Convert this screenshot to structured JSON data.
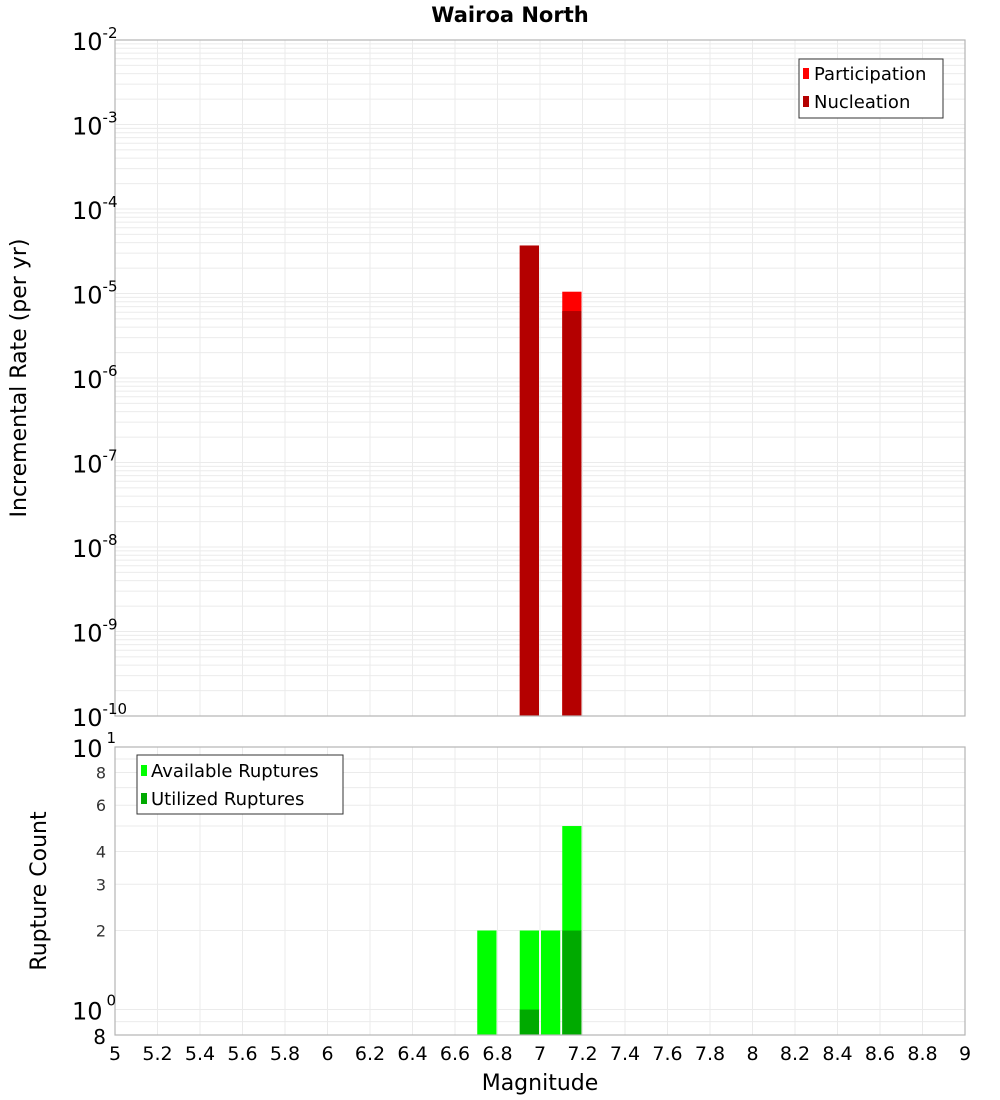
{
  "title": "Wairoa North",
  "colors": {
    "participation": "#ff0000",
    "nucleation": "#b40000",
    "available": "#00ff00",
    "utilized": "#00aa00",
    "grid": "#ebebeb",
    "frame": "#b4b4b4"
  },
  "top_plot": {
    "ylabel": "Incremental Rate (per yr)",
    "legend": [
      "Participation",
      "Nucleation"
    ],
    "yticks": [
      {
        "base": "10",
        "exp": "-2"
      },
      {
        "base": "10",
        "exp": "-3"
      },
      {
        "base": "10",
        "exp": "-4"
      },
      {
        "base": "10",
        "exp": "-5"
      },
      {
        "base": "10",
        "exp": "-6"
      },
      {
        "base": "10",
        "exp": "-7"
      },
      {
        "base": "10",
        "exp": "-8"
      },
      {
        "base": "10",
        "exp": "-9"
      },
      {
        "base": "10",
        "exp": "-10"
      }
    ]
  },
  "bottom_plot": {
    "ylabel": "Rupture Count",
    "legend": [
      "Available Ruptures",
      "Utilized Ruptures"
    ],
    "yticks_major": [
      {
        "base": "10",
        "exp": "1"
      },
      {
        "base": "10",
        "exp": "0"
      }
    ],
    "yticks_minor": [
      "8",
      "6",
      "4",
      "3",
      "2",
      "8"
    ]
  },
  "xaxis": {
    "label": "Magnitude",
    "ticks": [
      "5",
      "5.2",
      "5.4",
      "5.6",
      "5.8",
      "6",
      "6.2",
      "6.4",
      "6.6",
      "6.8",
      "7",
      "7.2",
      "7.4",
      "7.6",
      "7.8",
      "8",
      "8.2",
      "8.4",
      "8.6",
      "8.8",
      "9"
    ]
  },
  "chart_data": [
    {
      "type": "bar",
      "title": "Wairoa North",
      "xlabel": "Magnitude",
      "ylabel": "Incremental Rate (per yr)",
      "yscale": "log",
      "ylim": [
        1e-10,
        0.01
      ],
      "xlim": [
        5,
        9
      ],
      "grid": true,
      "legend_position": "top-right",
      "x": [
        6.95,
        7.15
      ],
      "series": [
        {
          "name": "Participation",
          "color": "#ff0000",
          "values": [
            3.7e-05,
            1.05e-05
          ]
        },
        {
          "name": "Nucleation",
          "color": "#b40000",
          "values": [
            3.7e-05,
            6.2e-06
          ]
        }
      ]
    },
    {
      "type": "bar",
      "xlabel": "Magnitude",
      "ylabel": "Rupture Count",
      "yscale": "log",
      "ylim": [
        0.8,
        10
      ],
      "xlim": [
        5,
        9
      ],
      "grid": true,
      "legend_position": "top-left",
      "x": [
        6.75,
        6.95,
        7.05,
        7.15
      ],
      "series": [
        {
          "name": "Available Ruptures",
          "color": "#00ff00",
          "values": [
            2,
            2,
            2,
            5
          ]
        },
        {
          "name": "Utilized Ruptures",
          "color": "#00aa00",
          "values": [
            0,
            1,
            0,
            2
          ]
        }
      ]
    }
  ]
}
